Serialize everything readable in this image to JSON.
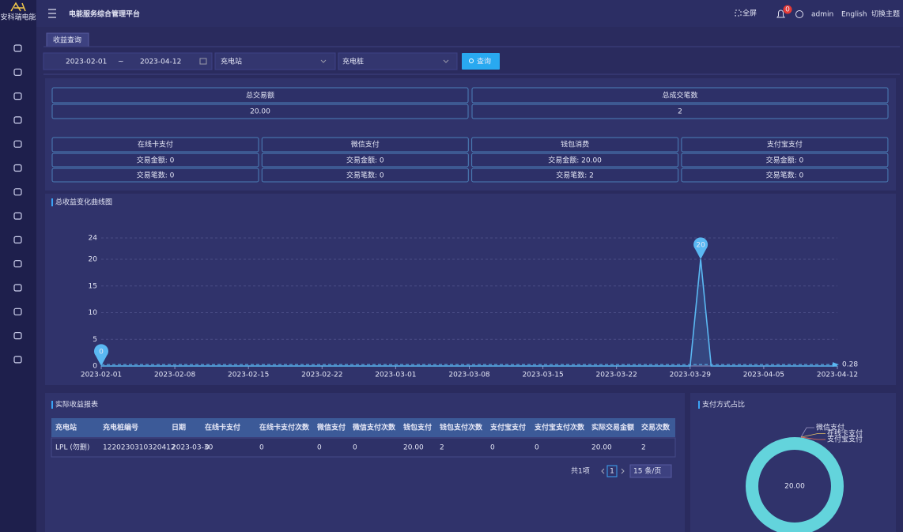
{
  "header": {
    "logo": "安科瑞电能",
    "title": "电能服务综合管理平台",
    "fullscreen": "全屏",
    "badge": "0",
    "user": "admin",
    "language": "English",
    "theme": "切换主题"
  },
  "tabs": [
    "收益查询"
  ],
  "filters": {
    "start_date": "2023-02-01",
    "separator": "~",
    "end_date": "2023-04-12",
    "station": "充电站",
    "pile": "充电桩",
    "query": "查询"
  },
  "summary": [
    {
      "label": "总交易额",
      "value": "20.00"
    },
    {
      "label": "总成交笔数",
      "value": "2"
    }
  ],
  "payments": [
    {
      "label": "在线卡支付",
      "amount": "交易金额: 0",
      "count": "交易笔数: 0"
    },
    {
      "label": "微信支付",
      "amount": "交易金额: 0",
      "count": "交易笔数: 0"
    },
    {
      "label": "钱包消费",
      "amount": "交易金额: 20.00",
      "count": "交易笔数: 2"
    },
    {
      "label": "支付宝支付",
      "amount": "交易金额: 0",
      "count": "交易笔数: 0"
    }
  ],
  "chart_data": [
    {
      "type": "line",
      "title": "总收益变化曲线图",
      "color": "#5ab8f2",
      "categories": [
        "2023-02-01",
        null,
        null,
        null,
        null,
        null,
        null,
        "2023-02-08",
        null,
        null,
        null,
        null,
        null,
        null,
        "2023-02-15",
        null,
        null,
        null,
        null,
        null,
        null,
        "2023-02-22",
        null,
        null,
        null,
        null,
        null,
        null,
        "2023-03-01",
        null,
        null,
        null,
        null,
        null,
        null,
        "2023-03-08",
        null,
        null,
        null,
        null,
        null,
        null,
        "2023-03-15",
        null,
        null,
        null,
        null,
        null,
        null,
        "2023-03-22",
        null,
        null,
        null,
        null,
        null,
        null,
        "2023-03-29",
        null,
        null,
        null,
        null,
        null,
        null,
        "2023-04-05",
        null,
        null,
        null,
        null,
        null,
        null,
        "2023-04-12"
      ],
      "values": [
        0,
        0,
        0,
        0,
        0,
        0,
        0,
        0,
        0,
        0,
        0,
        0,
        0,
        0,
        0,
        0,
        0,
        0,
        0,
        0,
        0,
        0,
        0,
        0,
        0,
        0,
        0,
        0,
        0,
        0,
        0,
        0,
        0,
        0,
        0,
        0,
        0,
        0,
        0,
        0,
        0,
        0,
        0,
        0,
        0,
        0,
        0,
        0,
        0,
        0,
        0,
        0,
        0,
        0,
        0,
        0,
        0,
        20,
        0,
        0,
        0,
        0,
        0,
        0,
        0,
        0,
        0,
        0,
        0,
        0,
        0
      ],
      "average_line": 0.28,
      "ylim": [
        0,
        24
      ],
      "yticks": [
        0,
        5,
        10,
        15,
        20,
        24
      ],
      "grid": true
    },
    {
      "type": "pie",
      "title": "支付方式占比",
      "categories": [
        "微信支付",
        "在线卡支付",
        "支付宝支付",
        null
      ],
      "values": [
        0,
        0,
        0,
        20
      ],
      "value_labels": [
        null,
        null,
        null,
        "20.00"
      ],
      "colors": [
        "#9a97c4",
        "#e8c46a",
        "#e8705a",
        "#63d4dc"
      ]
    }
  ],
  "table": {
    "title": "实际收益报表",
    "columns": [
      "充电站",
      "充电桩编号",
      "日期",
      "在线卡支付",
      "在线卡支付次数",
      "微信支付",
      "微信支付次数",
      "钱包支付",
      "钱包支付次数",
      "支付宝支付",
      "支付宝支付次数",
      "实际交易金额",
      "交易次数"
    ],
    "rows": [
      [
        "LPL (勿删)",
        "1220230310320412",
        "2023-03-30",
        "0",
        "0",
        "0",
        "0",
        "20.00",
        "2",
        "0",
        "0",
        "20.00",
        "2"
      ]
    ]
  },
  "pagination": {
    "total": "共1项",
    "page": "1",
    "size": "15 条/页"
  }
}
